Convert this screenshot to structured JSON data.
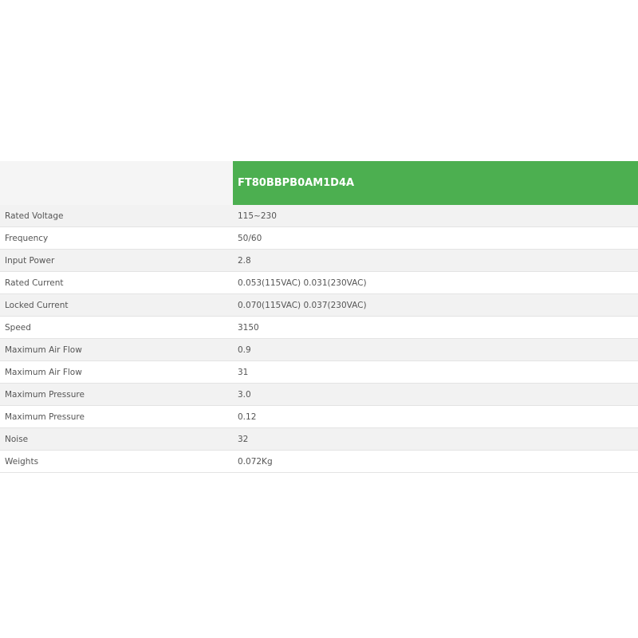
{
  "table": {
    "model": "FT80BBPB0AM1D4A",
    "header_color": "#4caf50",
    "rows": [
      {
        "label": "Rated Voltage",
        "value": "115~230"
      },
      {
        "label": "Frequency",
        "value": "50/60"
      },
      {
        "label": "Input Power",
        "value": "2.8"
      },
      {
        "label": "Rated Current",
        "value": "0.053(115VAC) 0.031(230VAC)"
      },
      {
        "label": "Locked Current",
        "value": "0.070(115VAC) 0.037(230VAC)"
      },
      {
        "label": "Speed",
        "value": "3150"
      },
      {
        "label": "Maximum Air Flow",
        "value": "0.9"
      },
      {
        "label": "Maximum Air Flow",
        "value": "31"
      },
      {
        "label": "Maximum Pressure",
        "value": "3.0"
      },
      {
        "label": "Maximum Pressure",
        "value": "0.12"
      },
      {
        "label": "Noise",
        "value": "32"
      },
      {
        "label": "Weights",
        "value": "0.072Kg"
      }
    ]
  }
}
